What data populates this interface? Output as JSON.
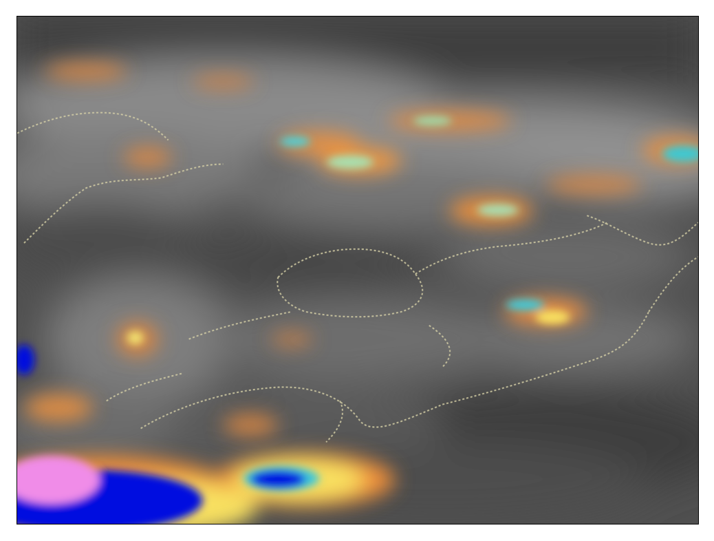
{
  "map": {
    "kind": "satellite enhanced infrared cloud imagery",
    "frame_color": "#000000",
    "base_colors": {
      "cold_cloud": "#8a8a8a",
      "clear": "#4a4a4a"
    },
    "enhancement_colors": [
      "#f0903a",
      "#f8e060",
      "#50d0d8",
      "#0010e0",
      "#f08ce8"
    ],
    "boundary_color": "#d8d2a8"
  }
}
